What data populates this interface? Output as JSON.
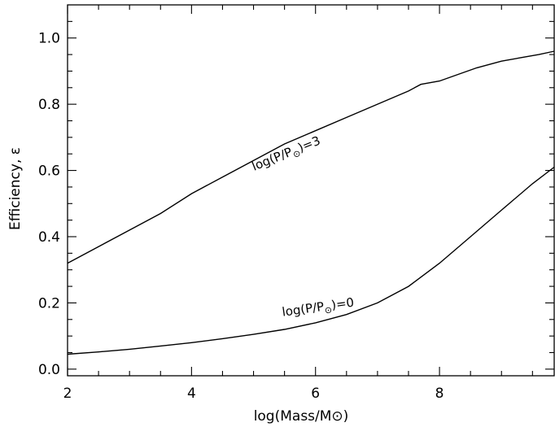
{
  "chart_data": {
    "type": "line",
    "xlabel": "log(Mass/M⊙)",
    "ylabel": "Efficiency, ε",
    "xlim": [
      2,
      9.85
    ],
    "ylim": [
      -0.02,
      1.1
    ],
    "xticks": [
      2,
      4,
      6,
      8
    ],
    "xtick_labels": [
      "2",
      "4",
      "6",
      "8"
    ],
    "yticks": [
      0.0,
      0.2,
      0.4,
      0.6,
      0.8,
      1.0
    ],
    "ytick_labels": [
      "0.0",
      "0.2",
      "0.4",
      "0.6",
      "0.8",
      "1.0"
    ],
    "grid": false,
    "series": [
      {
        "name": "log(P/P⊙)=3",
        "x": [
          2.0,
          2.5,
          3.0,
          3.5,
          4.0,
          4.5,
          5.0,
          5.5,
          6.0,
          6.5,
          7.0,
          7.5,
          7.6,
          7.7,
          8.0,
          8.3,
          8.6,
          9.0,
          9.3,
          9.6,
          9.85
        ],
        "y": [
          0.32,
          0.37,
          0.42,
          0.47,
          0.53,
          0.58,
          0.63,
          0.68,
          0.72,
          0.76,
          0.8,
          0.84,
          0.85,
          0.86,
          0.87,
          0.89,
          0.91,
          0.93,
          0.94,
          0.95,
          0.96
        ]
      },
      {
        "name": "log(P/P⊙)=0",
        "x": [
          2.0,
          2.5,
          3.0,
          3.5,
          4.0,
          4.5,
          5.0,
          5.5,
          6.0,
          6.5,
          7.0,
          7.5,
          8.0,
          8.5,
          9.0,
          9.5,
          9.85
        ],
        "y": [
          0.045,
          0.052,
          0.06,
          0.07,
          0.08,
          0.092,
          0.105,
          0.12,
          0.14,
          0.165,
          0.2,
          0.25,
          0.32,
          0.4,
          0.48,
          0.56,
          0.61
        ]
      }
    ],
    "annotations": [
      {
        "text": "log(P/P⊙)=3",
        "main": "log(P/P",
        "sub": "⊙",
        "tail": ")=3",
        "x": 5.55,
        "y": 0.64,
        "angle": -22
      },
      {
        "text": "log(P/P⊙)=0",
        "main": "log(P/P",
        "sub": "⊙",
        "tail": ")=0",
        "x": 6.05,
        "y": 0.175,
        "angle": -8
      }
    ]
  }
}
